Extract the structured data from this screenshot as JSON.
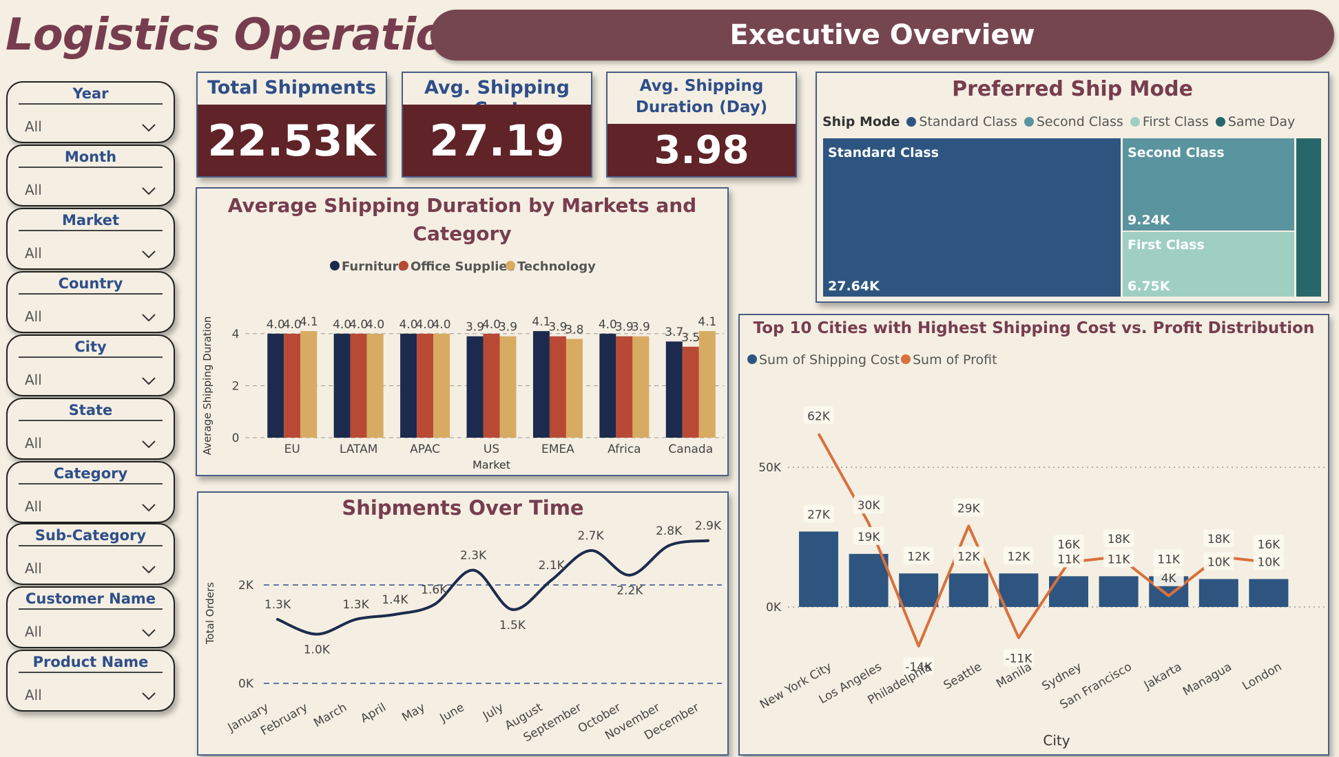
{
  "header": {
    "title": "Logistics Operation",
    "banner": "Executive Overview"
  },
  "filters": [
    {
      "label": "Year",
      "value": "All"
    },
    {
      "label": "Month",
      "value": "All"
    },
    {
      "label": "Market",
      "value": "All"
    },
    {
      "label": "Country",
      "value": "All"
    },
    {
      "label": "City",
      "value": "All"
    },
    {
      "label": "State",
      "value": "All"
    },
    {
      "label": "Category",
      "value": "All"
    },
    {
      "label": "Sub-Category",
      "value": "All"
    },
    {
      "label": "Customer Name",
      "value": "All"
    },
    {
      "label": "Product Name",
      "value": "All"
    }
  ],
  "kpis": [
    {
      "label": "Total Shipments",
      "value": "22.53K"
    },
    {
      "label": "Avg. Shipping Cost",
      "value": "27.19"
    },
    {
      "label": "Avg. Shipping Duration (Day)",
      "value": "3.98"
    }
  ],
  "colors": {
    "accent": "#773d4f",
    "banner": "#764650",
    "kpi": "#5f2328",
    "navy": "#1c2b4d",
    "red": "#b84a35",
    "gold": "#d8ab62",
    "tm_standard": "#2e5580",
    "tm_second": "#5a949f",
    "tm_first": "#9fcfc1",
    "tm_same": "#27676a",
    "orange": "#d9703d"
  },
  "shipMode": {
    "title": "Preferred Ship Mode",
    "legend_title": "Ship Mode",
    "legend": [
      "Standard Class",
      "Second Class",
      "First Class",
      "Same Day"
    ],
    "tiles": [
      {
        "name": "Standard Class",
        "value": "27.64K"
      },
      {
        "name": "Second Class",
        "value": "9.24K"
      },
      {
        "name": "First Class",
        "value": "6.75K"
      }
    ]
  },
  "chart_data": [
    {
      "type": "bar",
      "title": "Average Shipping Duration by Markets and Category",
      "xlabel": "Market",
      "ylabel": "Average Shipping Duration",
      "categories": [
        "EU",
        "LATAM",
        "APAC",
        "US",
        "EMEA",
        "Africa",
        "Canada"
      ],
      "ylim": [
        0,
        4.5
      ],
      "yticks": [
        0,
        2,
        4
      ],
      "series": [
        {
          "name": "Furniture",
          "values": [
            4.0,
            4.0,
            4.0,
            3.9,
            4.1,
            4.0,
            3.7
          ]
        },
        {
          "name": "Office Supplies",
          "values": [
            4.0,
            4.0,
            4.0,
            4.0,
            3.9,
            3.9,
            3.5
          ]
        },
        {
          "name": "Technology",
          "values": [
            4.1,
            4.0,
            4.0,
            3.9,
            3.8,
            3.9,
            4.1
          ]
        }
      ],
      "labels": [
        [
          "4.0",
          "4.0",
          "4.1"
        ],
        [
          "4.0",
          "4.0",
          "4.0"
        ],
        [
          "4.0",
          "4.0",
          "4.0"
        ],
        [
          "3.9",
          "4.0",
          "3.9"
        ],
        [
          "4.1",
          "3.9",
          "3.8"
        ],
        [
          "4.0",
          "3.9",
          "3.9"
        ],
        [
          "3.7",
          "3.5",
          "4.1"
        ]
      ]
    },
    {
      "type": "line",
      "title": "Shipments Over Time",
      "ylabel": "Total Orders",
      "categories": [
        "January",
        "February",
        "March",
        "April",
        "May",
        "June",
        "July",
        "August",
        "September",
        "October",
        "November",
        "December"
      ],
      "values": [
        1300,
        1000,
        1300,
        1400,
        1600,
        2300,
        1500,
        2100,
        2700,
        2200,
        2800,
        2900
      ],
      "labels": [
        "1.3K",
        "1.0K",
        "1.3K",
        "1.4K",
        "1.6K",
        "2.3K",
        "1.5K",
        "2.1K",
        "2.7K",
        "2.2K",
        "2.8K",
        "2.9K"
      ],
      "ylim": [
        0,
        3500
      ],
      "yticks": [
        {
          "v": 0,
          "t": "0K"
        },
        {
          "v": 2000,
          "t": "2K"
        }
      ]
    },
    {
      "type": "bar",
      "title": "Top 10 Cities with Highest Shipping Cost vs. Profit Distribution",
      "xlabel": "City",
      "categories": [
        "New York City",
        "Los Angeles",
        "Philadelphia",
        "Seattle",
        "Manila",
        "Sydney",
        "San Francisco",
        "Jakarta",
        "Managua",
        "London"
      ],
      "ylim": [
        -25000,
        75000
      ],
      "yticks": [
        {
          "v": 0,
          "t": "0K"
        },
        {
          "v": 50000,
          "t": "50K"
        }
      ],
      "series": [
        {
          "name": "Sum of Shipping Cost",
          "type": "bar",
          "values": [
            27000,
            19000,
            12000,
            12000,
            12000,
            11000,
            11000,
            11000,
            10000,
            10000
          ],
          "labels": [
            "27K",
            "19K",
            "12K",
            "12K",
            "12K",
            "11K",
            "11K",
            "11K",
            "10K",
            "10K"
          ]
        },
        {
          "name": "Sum of Profit",
          "type": "line",
          "values": [
            62000,
            30000,
            -14000,
            29000,
            -11000,
            16000,
            18000,
            4000,
            18000,
            16000
          ],
          "labels": [
            "62K",
            "30K",
            "-14K",
            "29K",
            "-11K",
            "16K",
            "18K",
            "4K",
            "18K",
            "16K"
          ]
        }
      ]
    }
  ]
}
